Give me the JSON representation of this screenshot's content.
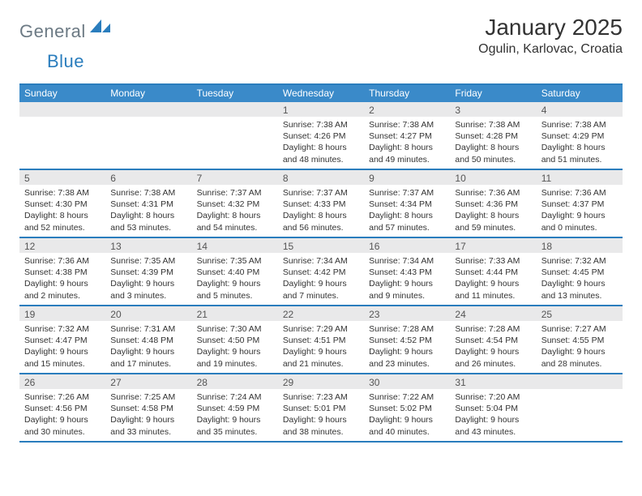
{
  "logo": {
    "part1": "General",
    "part2": "Blue"
  },
  "title": "January 2025",
  "location": "Ogulin, Karlovac, Croatia",
  "colors": {
    "brand_blue": "#3a8ac9",
    "brand_blue_dark": "#2a7dbd",
    "logo_gray": "#6c7a84",
    "daynum_bg": "#e9e9ea",
    "text": "#333333",
    "background": "#ffffff"
  },
  "weekdays": [
    "Sunday",
    "Monday",
    "Tuesday",
    "Wednesday",
    "Thursday",
    "Friday",
    "Saturday"
  ],
  "weeks": [
    [
      null,
      null,
      null,
      {
        "n": "1",
        "sunrise": "7:38 AM",
        "sunset": "4:26 PM",
        "daylight": "8 hours and 48 minutes."
      },
      {
        "n": "2",
        "sunrise": "7:38 AM",
        "sunset": "4:27 PM",
        "daylight": "8 hours and 49 minutes."
      },
      {
        "n": "3",
        "sunrise": "7:38 AM",
        "sunset": "4:28 PM",
        "daylight": "8 hours and 50 minutes."
      },
      {
        "n": "4",
        "sunrise": "7:38 AM",
        "sunset": "4:29 PM",
        "daylight": "8 hours and 51 minutes."
      }
    ],
    [
      {
        "n": "5",
        "sunrise": "7:38 AM",
        "sunset": "4:30 PM",
        "daylight": "8 hours and 52 minutes."
      },
      {
        "n": "6",
        "sunrise": "7:38 AM",
        "sunset": "4:31 PM",
        "daylight": "8 hours and 53 minutes."
      },
      {
        "n": "7",
        "sunrise": "7:37 AM",
        "sunset": "4:32 PM",
        "daylight": "8 hours and 54 minutes."
      },
      {
        "n": "8",
        "sunrise": "7:37 AM",
        "sunset": "4:33 PM",
        "daylight": "8 hours and 56 minutes."
      },
      {
        "n": "9",
        "sunrise": "7:37 AM",
        "sunset": "4:34 PM",
        "daylight": "8 hours and 57 minutes."
      },
      {
        "n": "10",
        "sunrise": "7:36 AM",
        "sunset": "4:36 PM",
        "daylight": "8 hours and 59 minutes."
      },
      {
        "n": "11",
        "sunrise": "7:36 AM",
        "sunset": "4:37 PM",
        "daylight": "9 hours and 0 minutes."
      }
    ],
    [
      {
        "n": "12",
        "sunrise": "7:36 AM",
        "sunset": "4:38 PM",
        "daylight": "9 hours and 2 minutes."
      },
      {
        "n": "13",
        "sunrise": "7:35 AM",
        "sunset": "4:39 PM",
        "daylight": "9 hours and 3 minutes."
      },
      {
        "n": "14",
        "sunrise": "7:35 AM",
        "sunset": "4:40 PM",
        "daylight": "9 hours and 5 minutes."
      },
      {
        "n": "15",
        "sunrise": "7:34 AM",
        "sunset": "4:42 PM",
        "daylight": "9 hours and 7 minutes."
      },
      {
        "n": "16",
        "sunrise": "7:34 AM",
        "sunset": "4:43 PM",
        "daylight": "9 hours and 9 minutes."
      },
      {
        "n": "17",
        "sunrise": "7:33 AM",
        "sunset": "4:44 PM",
        "daylight": "9 hours and 11 minutes."
      },
      {
        "n": "18",
        "sunrise": "7:32 AM",
        "sunset": "4:45 PM",
        "daylight": "9 hours and 13 minutes."
      }
    ],
    [
      {
        "n": "19",
        "sunrise": "7:32 AM",
        "sunset": "4:47 PM",
        "daylight": "9 hours and 15 minutes."
      },
      {
        "n": "20",
        "sunrise": "7:31 AM",
        "sunset": "4:48 PM",
        "daylight": "9 hours and 17 minutes."
      },
      {
        "n": "21",
        "sunrise": "7:30 AM",
        "sunset": "4:50 PM",
        "daylight": "9 hours and 19 minutes."
      },
      {
        "n": "22",
        "sunrise": "7:29 AM",
        "sunset": "4:51 PM",
        "daylight": "9 hours and 21 minutes."
      },
      {
        "n": "23",
        "sunrise": "7:28 AM",
        "sunset": "4:52 PM",
        "daylight": "9 hours and 23 minutes."
      },
      {
        "n": "24",
        "sunrise": "7:28 AM",
        "sunset": "4:54 PM",
        "daylight": "9 hours and 26 minutes."
      },
      {
        "n": "25",
        "sunrise": "7:27 AM",
        "sunset": "4:55 PM",
        "daylight": "9 hours and 28 minutes."
      }
    ],
    [
      {
        "n": "26",
        "sunrise": "7:26 AM",
        "sunset": "4:56 PM",
        "daylight": "9 hours and 30 minutes."
      },
      {
        "n": "27",
        "sunrise": "7:25 AM",
        "sunset": "4:58 PM",
        "daylight": "9 hours and 33 minutes."
      },
      {
        "n": "28",
        "sunrise": "7:24 AM",
        "sunset": "4:59 PM",
        "daylight": "9 hours and 35 minutes."
      },
      {
        "n": "29",
        "sunrise": "7:23 AM",
        "sunset": "5:01 PM",
        "daylight": "9 hours and 38 minutes."
      },
      {
        "n": "30",
        "sunrise": "7:22 AM",
        "sunset": "5:02 PM",
        "daylight": "9 hours and 40 minutes."
      },
      {
        "n": "31",
        "sunrise": "7:20 AM",
        "sunset": "5:04 PM",
        "daylight": "9 hours and 43 minutes."
      },
      null
    ]
  ],
  "labels": {
    "sunrise_prefix": "Sunrise: ",
    "sunset_prefix": "Sunset: ",
    "daylight_prefix": "Daylight: "
  }
}
